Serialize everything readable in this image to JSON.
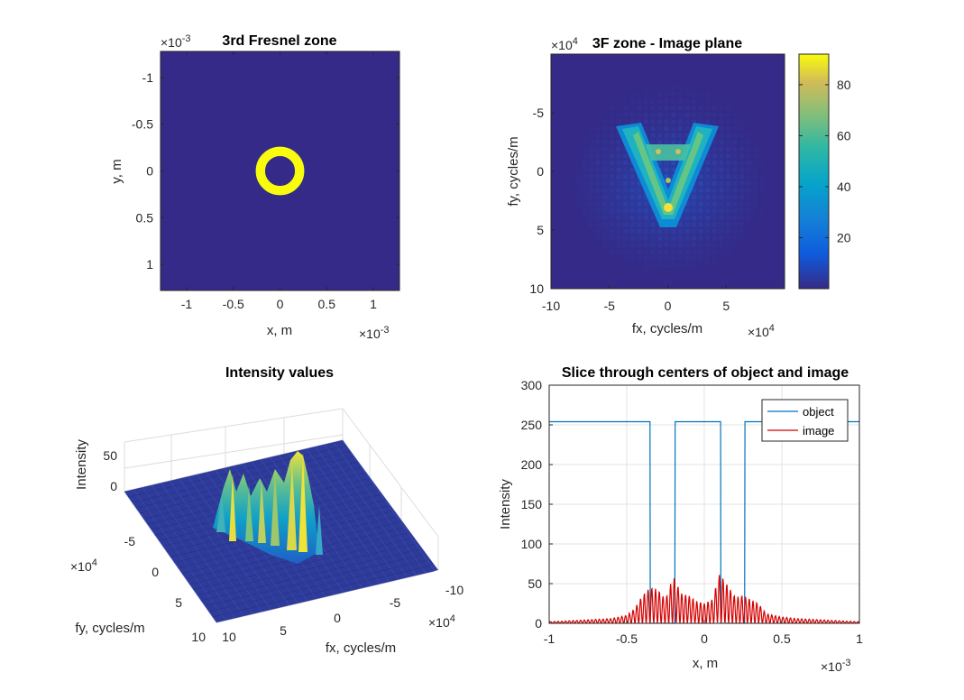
{
  "chart_data": [
    {
      "type": "heatmap",
      "title": "3rd Fresnel zone",
      "xlabel": "x, m",
      "ylabel": "y, m",
      "x_exponent": "×10",
      "x_exponent_power": "-3",
      "y_exponent": "×10",
      "y_exponent_power": "-3",
      "x_ticks": [
        "-1",
        "-0.5",
        "0",
        "0.5",
        "1"
      ],
      "x_tick_values": [
        -1,
        -0.5,
        0,
        0.5,
        1
      ],
      "y_ticks": [
        "-1",
        "-0.5",
        "0",
        "0.5",
        "1"
      ],
      "y_tick_values": [
        -1,
        -0.5,
        0,
        0.5,
        1
      ],
      "xlim": [
        -1.28,
        1.28
      ],
      "ylim": [
        -1.28,
        1.28
      ],
      "ring": {
        "inner_radius": 0.16,
        "outer_radius": 0.26
      },
      "background_color": "#352a87",
      "ring_color": "#f9fb0e"
    },
    {
      "type": "heatmap",
      "title": "3F zone - Image plane",
      "xlabel": "fx, cycles/m",
      "ylabel": "fy, cycles/m",
      "x_exponent": "×10",
      "x_exponent_power": "4",
      "y_exponent": "×10",
      "y_exponent_power": "4",
      "x_ticks": [
        "-10",
        "-5",
        "0",
        "5"
      ],
      "x_tick_values": [
        -10,
        -5,
        0,
        5
      ],
      "y_ticks": [
        "-5",
        "0",
        "5",
        "10"
      ],
      "y_tick_values": [
        -5,
        0,
        5,
        10
      ],
      "xlim": [
        -10,
        10
      ],
      "ylim": [
        -10,
        10
      ],
      "colorbar": {
        "ticks": [
          "20",
          "40",
          "60",
          "80"
        ],
        "tick_values": [
          20,
          40,
          60,
          80
        ],
        "range": [
          0,
          92
        ]
      }
    },
    {
      "type": "surface",
      "title": "Intensity values",
      "xlabel": "fx, cycles/m",
      "ylabel": "fy, cycles/m",
      "zlabel": "Intensity",
      "x_exponent": "×10",
      "x_exponent_power": "4",
      "y_exponent": "×10",
      "y_exponent_power": "4",
      "x_ticks": [
        "10",
        "5",
        "0",
        "-5",
        "-10"
      ],
      "y_ticks": [
        "-5",
        "0",
        "5",
        "10"
      ],
      "z_ticks": [
        "0",
        "50"
      ],
      "zlim": [
        0,
        90
      ]
    },
    {
      "type": "line",
      "title": "Slice through centers of object and image",
      "xlabel": "x, m",
      "ylabel": "Intensity",
      "x_exponent": "×10",
      "x_exponent_power": "-3",
      "xlim": [
        -1,
        1
      ],
      "ylim": [
        0,
        300
      ],
      "x_ticks": [
        "-1",
        "-0.5",
        "0",
        "0.5",
        "1"
      ],
      "x_tick_values": [
        -1,
        -0.5,
        0,
        0.5,
        1
      ],
      "y_ticks": [
        "0",
        "50",
        "100",
        "150",
        "200",
        "250",
        "300"
      ],
      "y_tick_values": [
        0,
        50,
        100,
        150,
        200,
        250,
        300
      ],
      "grid": true,
      "legend_position": "top-right",
      "series": [
        {
          "name": "object",
          "color": "#0072bd",
          "x": [
            -1,
            -0.35,
            -0.348,
            -0.19,
            -0.188,
            0.105,
            0.107,
            0.26,
            0.262,
            1
          ],
          "y": [
            254,
            254,
            0,
            0,
            254,
            254,
            0,
            0,
            254,
            254
          ]
        },
        {
          "name": "image",
          "color": "#d40000",
          "x": [
            -1,
            -0.8,
            -0.6,
            -0.5,
            -0.45,
            -0.4,
            -0.35,
            -0.3,
            -0.25,
            -0.2,
            -0.15,
            -0.1,
            -0.05,
            0,
            0.05,
            0.1,
            0.15,
            0.2,
            0.25,
            0.3,
            0.35,
            0.4,
            0.5,
            0.6,
            0.8,
            1
          ],
          "y": [
            2,
            4,
            6,
            10,
            18,
            35,
            45,
            43,
            30,
            60,
            38,
            35,
            28,
            25,
            30,
            63,
            48,
            33,
            35,
            30,
            25,
            12,
            8,
            6,
            4,
            2
          ]
        }
      ]
    }
  ]
}
